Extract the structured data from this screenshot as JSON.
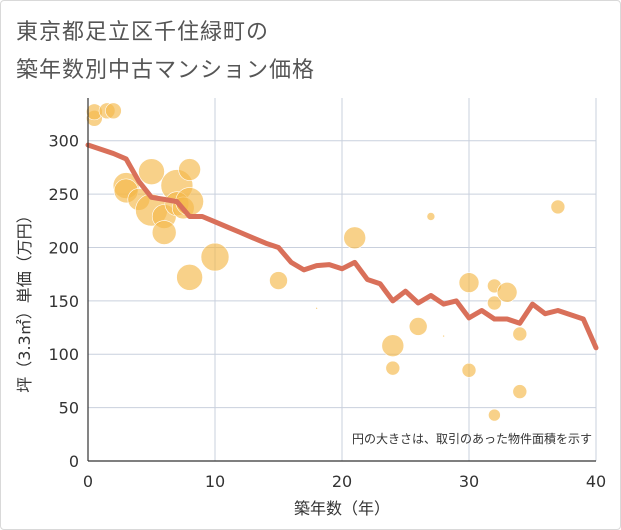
{
  "title_line1": "東京都足立区千住緑町の",
  "title_line2": "築年数別中古マンション価格",
  "chart_data": {
    "type": "scatter",
    "xlabel": "築年数（年）",
    "ylabel": "坪（3.3㎡）単価（万円）",
    "xlim": [
      0,
      40
    ],
    "ylim": [
      0,
      340
    ],
    "xticks": [
      0,
      10,
      20,
      30,
      40
    ],
    "yticks": [
      0,
      50,
      100,
      150,
      200,
      250,
      300
    ],
    "grid": true,
    "note": "円の大きさは、取引のあった物件面積を示す",
    "colors": {
      "bubble": "#f5b94a",
      "line": "#d9705a",
      "grid": "#c9d0dd"
    },
    "points": [
      {
        "x": 0.5,
        "y": 321,
        "s": 8
      },
      {
        "x": 0.5,
        "y": 327,
        "s": 8
      },
      {
        "x": 1.5,
        "y": 328,
        "s": 8
      },
      {
        "x": 2,
        "y": 328,
        "s": 8
      },
      {
        "x": 3,
        "y": 258,
        "s": 13
      },
      {
        "x": 3,
        "y": 253,
        "s": 12
      },
      {
        "x": 4,
        "y": 245,
        "s": 11
      },
      {
        "x": 5,
        "y": 271,
        "s": 13
      },
      {
        "x": 5,
        "y": 235,
        "s": 16
      },
      {
        "x": 6,
        "y": 229,
        "s": 12
      },
      {
        "x": 6,
        "y": 214,
        "s": 12
      },
      {
        "x": 7,
        "y": 258,
        "s": 16
      },
      {
        "x": 7,
        "y": 241,
        "s": 12
      },
      {
        "x": 7.5,
        "y": 237,
        "s": 11
      },
      {
        "x": 8,
        "y": 273,
        "s": 11
      },
      {
        "x": 8,
        "y": 243,
        "s": 14
      },
      {
        "x": 8,
        "y": 172,
        "s": 13
      },
      {
        "x": 10,
        "y": 191,
        "s": 14
      },
      {
        "x": 15,
        "y": 169,
        "s": 9
      },
      {
        "x": 18,
        "y": 143,
        "s": 1
      },
      {
        "x": 21,
        "y": 209,
        "s": 11
      },
      {
        "x": 24,
        "y": 108,
        "s": 11
      },
      {
        "x": 24,
        "y": 87,
        "s": 7
      },
      {
        "x": 26,
        "y": 126,
        "s": 9
      },
      {
        "x": 27,
        "y": 229,
        "s": 4
      },
      {
        "x": 28,
        "y": 117,
        "s": 1
      },
      {
        "x": 30,
        "y": 167,
        "s": 10
      },
      {
        "x": 30,
        "y": 85,
        "s": 7
      },
      {
        "x": 32,
        "y": 164,
        "s": 7
      },
      {
        "x": 32,
        "y": 148,
        "s": 7
      },
      {
        "x": 32,
        "y": 43,
        "s": 6
      },
      {
        "x": 33,
        "y": 158,
        "s": 10
      },
      {
        "x": 34,
        "y": 119,
        "s": 7
      },
      {
        "x": 34,
        "y": 65,
        "s": 7
      },
      {
        "x": 37,
        "y": 238,
        "s": 7
      }
    ],
    "line": {
      "x": [
        0,
        1,
        2,
        3,
        4,
        5,
        6,
        7,
        8,
        9,
        10,
        11,
        12,
        13,
        14,
        15,
        16,
        17,
        18,
        19,
        20,
        21,
        22,
        23,
        24,
        25,
        26,
        27,
        28,
        29,
        30,
        31,
        32,
        33,
        34,
        35,
        36,
        37,
        38,
        39,
        40
      ],
      "y": [
        296,
        292,
        288,
        283,
        262,
        247,
        245,
        243,
        229,
        229,
        224,
        219,
        214,
        209,
        204,
        200,
        186,
        179,
        183,
        184,
        180,
        186,
        170,
        166,
        150,
        159,
        148,
        155,
        147,
        150,
        134,
        141,
        133,
        133,
        129,
        147,
        138,
        141,
        137,
        133,
        106
      ]
    }
  }
}
